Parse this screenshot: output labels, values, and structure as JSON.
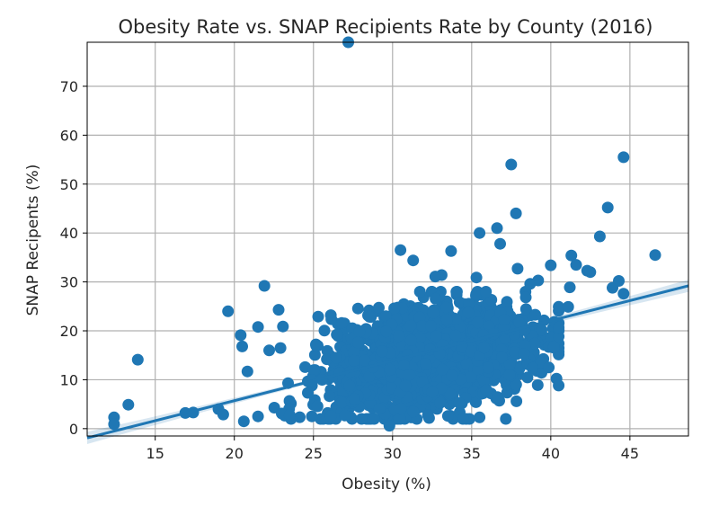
{
  "chart_data": {
    "type": "scatter",
    "title": "Obesity Rate vs. SNAP Recipients Rate by County (2016)",
    "xlabel": "Obesity (%)",
    "ylabel": "SNAP Recipents (%)",
    "xlim": [
      10.7,
      48.7
    ],
    "ylim": [
      -1.5,
      79
    ],
    "xticks": [
      15,
      20,
      25,
      30,
      35,
      40,
      45
    ],
    "yticks": [
      0,
      10,
      20,
      30,
      40,
      50,
      60,
      70
    ],
    "grid": true,
    "legend": "none",
    "colors": {
      "points": "#1f77b4",
      "band": "#1f77b4",
      "grid": "#b0b0b0"
    },
    "highlighted_points": [
      [
        27.2,
        79
      ],
      [
        44.6,
        55.5
      ],
      [
        37.5,
        54
      ],
      [
        37.8,
        44
      ],
      [
        43.6,
        45.2
      ],
      [
        43.1,
        39.3
      ],
      [
        35.5,
        40
      ],
      [
        36.6,
        41
      ],
      [
        36.8,
        37.8
      ],
      [
        30.5,
        36.5
      ],
      [
        31.3,
        34.4
      ],
      [
        33.7,
        36.3
      ],
      [
        37.9,
        32.7
      ],
      [
        40,
        33.4
      ],
      [
        41.3,
        35.4
      ],
      [
        41.6,
        33.5
      ],
      [
        42.3,
        32.3
      ],
      [
        42.5,
        32
      ],
      [
        43.9,
        28.8
      ],
      [
        44.3,
        30.2
      ],
      [
        44.6,
        27.6
      ],
      [
        46.6,
        35.5
      ],
      [
        21.9,
        29.2
      ],
      [
        19.6,
        24
      ],
      [
        22.8,
        24.3
      ],
      [
        25.3,
        22.9
      ],
      [
        26.1,
        23.2
      ],
      [
        26.8,
        21.6
      ],
      [
        21.5,
        20.8
      ],
      [
        20.4,
        19.1
      ],
      [
        20.5,
        16.8
      ],
      [
        22.2,
        16
      ],
      [
        13.9,
        14.1
      ],
      [
        13.3,
        4.9
      ],
      [
        12.4,
        2.3
      ],
      [
        12.4,
        0.9
      ],
      [
        16.9,
        3.2
      ],
      [
        17.4,
        3.3
      ],
      [
        19,
        4
      ],
      [
        19.3,
        2.9
      ],
      [
        20.6,
        1.5
      ],
      [
        21.5,
        2.5
      ],
      [
        23,
        3.1
      ],
      [
        23.5,
        2.8
      ],
      [
        24.9,
        2.5
      ],
      [
        26.1,
        2.6
      ],
      [
        29.8,
        0.6
      ],
      [
        33.5,
        2.6
      ],
      [
        35.5,
        2.3
      ],
      [
        40.5,
        20.7
      ],
      [
        40.2,
        16.7
      ],
      [
        38.3,
        15.3
      ],
      [
        41.1,
        24.9
      ],
      [
        41.2,
        28.9
      ],
      [
        39.2,
        30.3
      ],
      [
        38.7,
        29.6
      ],
      [
        35.9,
        28
      ],
      [
        35.3,
        30.9
      ],
      [
        33.1,
        31.4
      ],
      [
        32.7,
        31.1
      ]
    ],
    "cloud_center": {
      "x": 32.3,
      "y": 14.5
    },
    "cloud_spread": {
      "x": 3.3,
      "y": 5
    },
    "cloud_count": 1700,
    "regression": {
      "x": [
        10.7,
        48.7
      ],
      "y": [
        -1.9,
        29.2
      ]
    }
  }
}
